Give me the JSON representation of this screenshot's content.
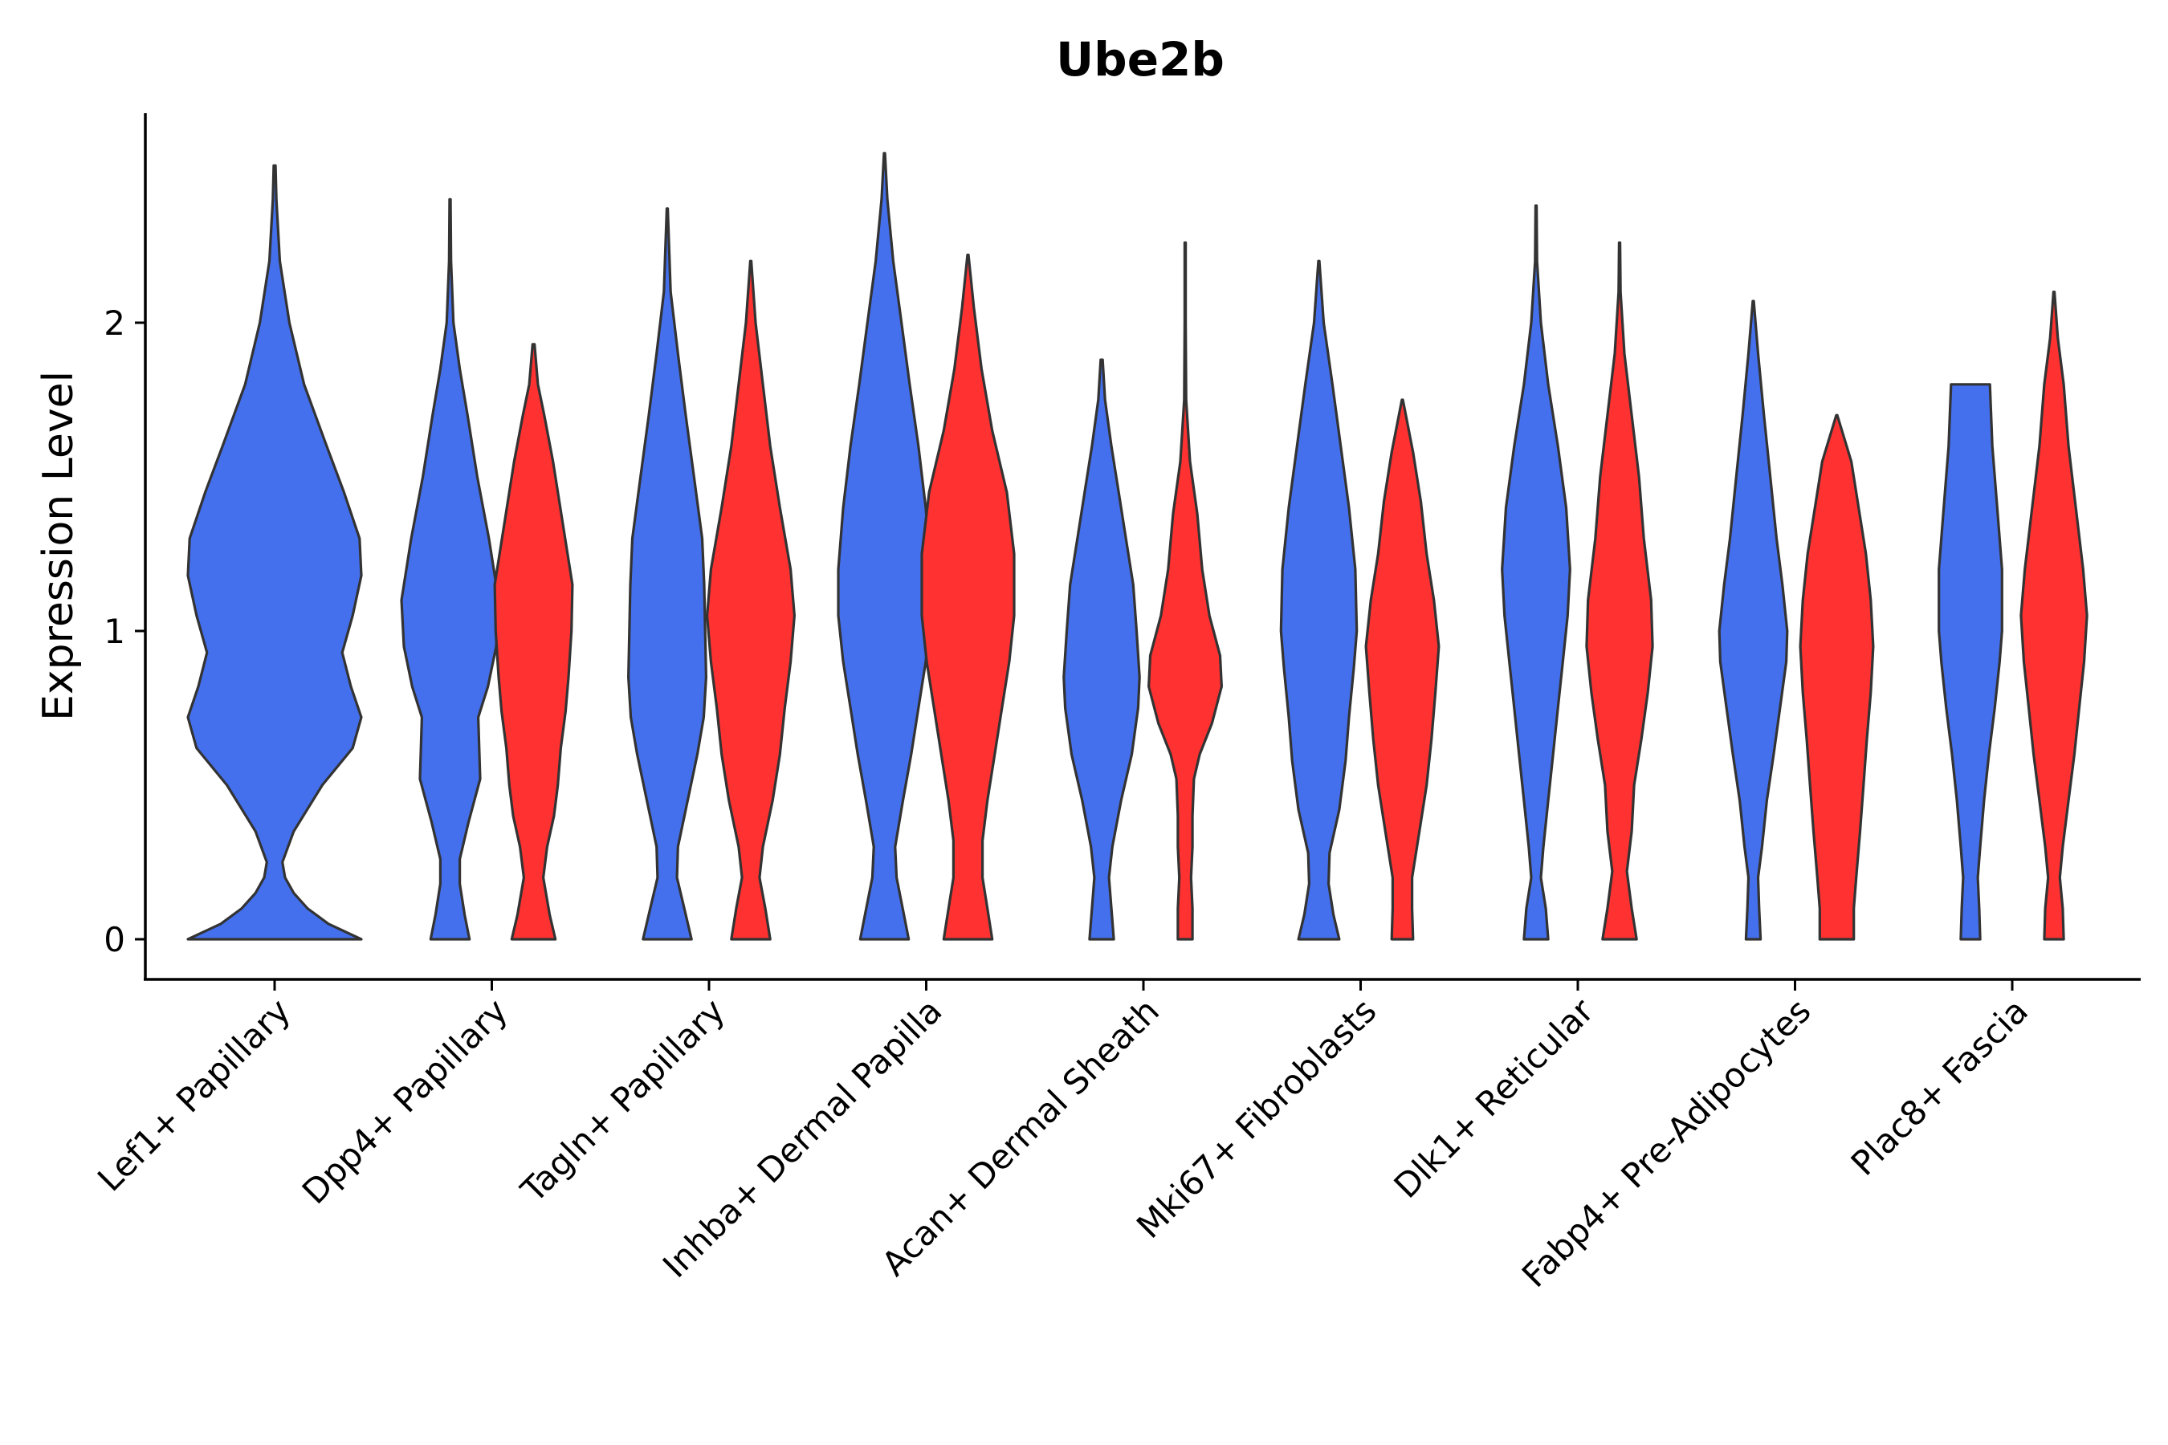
{
  "chart_data": {
    "type": "violin",
    "title": "Ube2b",
    "xlabel": "",
    "ylabel": "Expression Level",
    "ylim": [
      -0.13,
      2.7
    ],
    "yticks": [
      0,
      1,
      2
    ],
    "grid": false,
    "legend": "none",
    "colors": {
      "group_a": "#4470ED",
      "group_b": "#FF3131",
      "outline": "#333333"
    },
    "categories": [
      "Lef1+ Papillary",
      "Dpp4+ Papillary",
      "Tagln+ Papillary",
      "Inhba+ Dermal Papilla",
      "Acan+ Dermal Sheath",
      "Mki67+ Fibroblasts",
      "Dlk1+ Reticular",
      "Fabp4+ Pre-Adipocytes",
      "Plac8+ Fascia"
    ],
    "violins": [
      {
        "category": "Lef1+ Papillary",
        "group": "a",
        "max": 2.51,
        "density": [
          [
            0,
            1.0
          ],
          [
            0.05,
            0.62
          ],
          [
            0.1,
            0.38
          ],
          [
            0.15,
            0.22
          ],
          [
            0.2,
            0.12
          ],
          [
            0.25,
            0.09
          ],
          [
            0.35,
            0.22
          ],
          [
            0.5,
            0.55
          ],
          [
            0.62,
            0.9
          ],
          [
            0.72,
            1.0
          ],
          [
            0.82,
            0.88
          ],
          [
            0.93,
            0.78
          ],
          [
            1.05,
            0.9
          ],
          [
            1.18,
            1.0
          ],
          [
            1.3,
            0.98
          ],
          [
            1.45,
            0.8
          ],
          [
            1.6,
            0.6
          ],
          [
            1.8,
            0.34
          ],
          [
            2.0,
            0.17
          ],
          [
            2.2,
            0.06
          ],
          [
            2.4,
            0.02
          ],
          [
            2.51,
            0.01
          ]
        ]
      },
      {
        "category": "Dpp4+ Papillary",
        "group": "a",
        "max": 2.4,
        "density": [
          [
            0,
            0.4
          ],
          [
            0.08,
            0.3
          ],
          [
            0.18,
            0.2
          ],
          [
            0.26,
            0.2
          ],
          [
            0.38,
            0.38
          ],
          [
            0.52,
            0.62
          ],
          [
            0.62,
            0.6
          ],
          [
            0.72,
            0.58
          ],
          [
            0.82,
            0.78
          ],
          [
            0.95,
            0.95
          ],
          [
            1.1,
            1.0
          ],
          [
            1.3,
            0.8
          ],
          [
            1.5,
            0.56
          ],
          [
            1.7,
            0.36
          ],
          [
            1.85,
            0.2
          ],
          [
            2.0,
            0.07
          ],
          [
            2.2,
            0.02
          ],
          [
            2.4,
            0.01
          ]
        ]
      },
      {
        "category": "Dpp4+ Papillary",
        "group": "b",
        "max": 1.93,
        "density": [
          [
            0,
            0.45
          ],
          [
            0.08,
            0.33
          ],
          [
            0.2,
            0.2
          ],
          [
            0.3,
            0.28
          ],
          [
            0.4,
            0.42
          ],
          [
            0.5,
            0.5
          ],
          [
            0.62,
            0.56
          ],
          [
            0.74,
            0.66
          ],
          [
            0.85,
            0.72
          ],
          [
            1.0,
            0.78
          ],
          [
            1.15,
            0.8
          ],
          [
            1.35,
            0.6
          ],
          [
            1.55,
            0.4
          ],
          [
            1.7,
            0.22
          ],
          [
            1.8,
            0.09
          ],
          [
            1.93,
            0.02
          ]
        ]
      },
      {
        "category": "Tagln+ Papillary",
        "group": "a",
        "max": 2.37,
        "density": [
          [
            0,
            0.5
          ],
          [
            0.1,
            0.35
          ],
          [
            0.2,
            0.2
          ],
          [
            0.3,
            0.22
          ],
          [
            0.45,
            0.42
          ],
          [
            0.6,
            0.62
          ],
          [
            0.72,
            0.75
          ],
          [
            0.85,
            0.8
          ],
          [
            1.0,
            0.78
          ],
          [
            1.15,
            0.76
          ],
          [
            1.3,
            0.72
          ],
          [
            1.5,
            0.55
          ],
          [
            1.7,
            0.38
          ],
          [
            1.9,
            0.22
          ],
          [
            2.1,
            0.07
          ],
          [
            2.37,
            0.01
          ]
        ]
      },
      {
        "category": "Tagln+ Papillary",
        "group": "b",
        "max": 2.2,
        "density": [
          [
            0,
            0.4
          ],
          [
            0.1,
            0.3
          ],
          [
            0.2,
            0.18
          ],
          [
            0.3,
            0.25
          ],
          [
            0.45,
            0.45
          ],
          [
            0.6,
            0.6
          ],
          [
            0.75,
            0.7
          ],
          [
            0.9,
            0.82
          ],
          [
            1.05,
            0.9
          ],
          [
            1.2,
            0.82
          ],
          [
            1.4,
            0.6
          ],
          [
            1.6,
            0.4
          ],
          [
            1.8,
            0.25
          ],
          [
            2.0,
            0.1
          ],
          [
            2.2,
            0.01
          ]
        ]
      },
      {
        "category": "Inhba+ Dermal Papilla",
        "group": "a",
        "max": 2.55,
        "density": [
          [
            0,
            0.5
          ],
          [
            0.08,
            0.4
          ],
          [
            0.2,
            0.25
          ],
          [
            0.3,
            0.22
          ],
          [
            0.45,
            0.38
          ],
          [
            0.6,
            0.55
          ],
          [
            0.75,
            0.7
          ],
          [
            0.9,
            0.85
          ],
          [
            1.05,
            0.95
          ],
          [
            1.2,
            0.95
          ],
          [
            1.4,
            0.85
          ],
          [
            1.6,
            0.7
          ],
          [
            1.8,
            0.52
          ],
          [
            2.0,
            0.35
          ],
          [
            2.2,
            0.18
          ],
          [
            2.4,
            0.06
          ],
          [
            2.55,
            0.01
          ]
        ]
      },
      {
        "category": "Inhba+ Dermal Papilla",
        "group": "b",
        "max": 2.22,
        "density": [
          [
            0,
            0.5
          ],
          [
            0.1,
            0.4
          ],
          [
            0.2,
            0.3
          ],
          [
            0.32,
            0.3
          ],
          [
            0.45,
            0.4
          ],
          [
            0.6,
            0.55
          ],
          [
            0.75,
            0.7
          ],
          [
            0.9,
            0.85
          ],
          [
            1.05,
            0.95
          ],
          [
            1.25,
            0.95
          ],
          [
            1.45,
            0.8
          ],
          [
            1.65,
            0.5
          ],
          [
            1.85,
            0.28
          ],
          [
            2.05,
            0.12
          ],
          [
            2.22,
            0.01
          ]
        ]
      },
      {
        "category": "Acan+ Dermal Sheath",
        "group": "a",
        "max": 1.88,
        "density": [
          [
            0,
            0.25
          ],
          [
            0.1,
            0.2
          ],
          [
            0.2,
            0.15
          ],
          [
            0.3,
            0.22
          ],
          [
            0.45,
            0.4
          ],
          [
            0.6,
            0.62
          ],
          [
            0.75,
            0.75
          ],
          [
            0.85,
            0.78
          ],
          [
            1.0,
            0.72
          ],
          [
            1.15,
            0.65
          ],
          [
            1.3,
            0.5
          ],
          [
            1.45,
            0.35
          ],
          [
            1.6,
            0.2
          ],
          [
            1.75,
            0.07
          ],
          [
            1.88,
            0.02
          ]
        ]
      },
      {
        "category": "Acan+ Dermal Sheath",
        "group": "b",
        "max": 2.26,
        "density": [
          [
            0,
            0.15
          ],
          [
            0.1,
            0.15
          ],
          [
            0.2,
            0.12
          ],
          [
            0.3,
            0.15
          ],
          [
            0.4,
            0.15
          ],
          [
            0.52,
            0.18
          ],
          [
            0.6,
            0.3
          ],
          [
            0.7,
            0.55
          ],
          [
            0.82,
            0.75
          ],
          [
            0.92,
            0.72
          ],
          [
            1.05,
            0.5
          ],
          [
            1.2,
            0.35
          ],
          [
            1.38,
            0.25
          ],
          [
            1.55,
            0.1
          ],
          [
            1.75,
            0.02
          ],
          [
            2.0,
            0.01
          ],
          [
            2.26,
            0.01
          ]
        ]
      },
      {
        "category": "Mki67+ Fibroblasts",
        "group": "a",
        "max": 2.2,
        "density": [
          [
            0,
            0.42
          ],
          [
            0.08,
            0.3
          ],
          [
            0.18,
            0.2
          ],
          [
            0.28,
            0.22
          ],
          [
            0.42,
            0.42
          ],
          [
            0.58,
            0.55
          ],
          [
            0.72,
            0.62
          ],
          [
            0.88,
            0.72
          ],
          [
            1.0,
            0.78
          ],
          [
            1.2,
            0.75
          ],
          [
            1.4,
            0.62
          ],
          [
            1.6,
            0.45
          ],
          [
            1.8,
            0.28
          ],
          [
            2.0,
            0.1
          ],
          [
            2.2,
            0.01
          ]
        ]
      },
      {
        "category": "Mki67+ Fibroblasts",
        "group": "b",
        "max": 1.75,
        "density": [
          [
            0,
            0.22
          ],
          [
            0.1,
            0.2
          ],
          [
            0.2,
            0.2
          ],
          [
            0.35,
            0.35
          ],
          [
            0.5,
            0.5
          ],
          [
            0.65,
            0.6
          ],
          [
            0.8,
            0.68
          ],
          [
            0.95,
            0.75
          ],
          [
            1.1,
            0.65
          ],
          [
            1.25,
            0.5
          ],
          [
            1.42,
            0.38
          ],
          [
            1.58,
            0.22
          ],
          [
            1.75,
            0.01
          ]
        ]
      },
      {
        "category": "Dlk1+ Reticular",
        "group": "a",
        "max": 2.38,
        "density": [
          [
            0,
            0.25
          ],
          [
            0.1,
            0.2
          ],
          [
            0.2,
            0.1
          ],
          [
            0.3,
            0.15
          ],
          [
            0.45,
            0.25
          ],
          [
            0.6,
            0.35
          ],
          [
            0.75,
            0.45
          ],
          [
            0.9,
            0.55
          ],
          [
            1.05,
            0.65
          ],
          [
            1.2,
            0.7
          ],
          [
            1.4,
            0.62
          ],
          [
            1.6,
            0.45
          ],
          [
            1.8,
            0.25
          ],
          [
            2.0,
            0.1
          ],
          [
            2.2,
            0.02
          ],
          [
            2.38,
            0.01
          ]
        ]
      },
      {
        "category": "Dlk1+ Reticular",
        "group": "b",
        "max": 2.26,
        "density": [
          [
            0,
            0.35
          ],
          [
            0.1,
            0.25
          ],
          [
            0.22,
            0.15
          ],
          [
            0.35,
            0.25
          ],
          [
            0.5,
            0.3
          ],
          [
            0.65,
            0.45
          ],
          [
            0.8,
            0.58
          ],
          [
            0.95,
            0.68
          ],
          [
            1.1,
            0.65
          ],
          [
            1.3,
            0.5
          ],
          [
            1.5,
            0.4
          ],
          [
            1.7,
            0.25
          ],
          [
            1.9,
            0.1
          ],
          [
            2.1,
            0.02
          ],
          [
            2.26,
            0.01
          ]
        ]
      },
      {
        "category": "Fabp4+ Pre-Adipocytes",
        "group": "a",
        "max": 2.07,
        "density": [
          [
            0,
            0.15
          ],
          [
            0.1,
            0.12
          ],
          [
            0.2,
            0.1
          ],
          [
            0.3,
            0.18
          ],
          [
            0.45,
            0.28
          ],
          [
            0.6,
            0.42
          ],
          [
            0.75,
            0.55
          ],
          [
            0.9,
            0.68
          ],
          [
            1.0,
            0.7
          ],
          [
            1.15,
            0.6
          ],
          [
            1.3,
            0.48
          ],
          [
            1.5,
            0.35
          ],
          [
            1.7,
            0.22
          ],
          [
            1.9,
            0.1
          ],
          [
            2.07,
            0.01
          ]
        ]
      },
      {
        "category": "Fabp4+ Pre-Adipocytes",
        "group": "b",
        "max": 1.7,
        "density": [
          [
            0,
            0.35
          ],
          [
            0.1,
            0.35
          ],
          [
            0.2,
            0.4
          ],
          [
            0.35,
            0.48
          ],
          [
            0.5,
            0.55
          ],
          [
            0.65,
            0.62
          ],
          [
            0.8,
            0.7
          ],
          [
            0.95,
            0.75
          ],
          [
            1.1,
            0.7
          ],
          [
            1.25,
            0.6
          ],
          [
            1.4,
            0.45
          ],
          [
            1.55,
            0.3
          ],
          [
            1.7,
            0.01
          ]
        ]
      },
      {
        "category": "Plac8+ Fascia",
        "group": "a",
        "max": 1.8,
        "density": [
          [
            0,
            0.2
          ],
          [
            0.1,
            0.18
          ],
          [
            0.2,
            0.15
          ],
          [
            0.3,
            0.2
          ],
          [
            0.45,
            0.28
          ],
          [
            0.6,
            0.38
          ],
          [
            0.75,
            0.5
          ],
          [
            0.9,
            0.6
          ],
          [
            1.0,
            0.65
          ],
          [
            1.2,
            0.65
          ],
          [
            1.4,
            0.55
          ],
          [
            1.6,
            0.45
          ],
          [
            1.8,
            0.4
          ]
        ]
      },
      {
        "category": "Plac8+ Fascia",
        "group": "b",
        "max": 2.1,
        "density": [
          [
            0,
            0.2
          ],
          [
            0.1,
            0.18
          ],
          [
            0.2,
            0.12
          ],
          [
            0.3,
            0.18
          ],
          [
            0.45,
            0.3
          ],
          [
            0.6,
            0.42
          ],
          [
            0.75,
            0.52
          ],
          [
            0.9,
            0.62
          ],
          [
            1.05,
            0.68
          ],
          [
            1.2,
            0.6
          ],
          [
            1.4,
            0.45
          ],
          [
            1.6,
            0.3
          ],
          [
            1.8,
            0.2
          ],
          [
            1.95,
            0.08
          ],
          [
            2.1,
            0.01
          ]
        ]
      }
    ]
  }
}
